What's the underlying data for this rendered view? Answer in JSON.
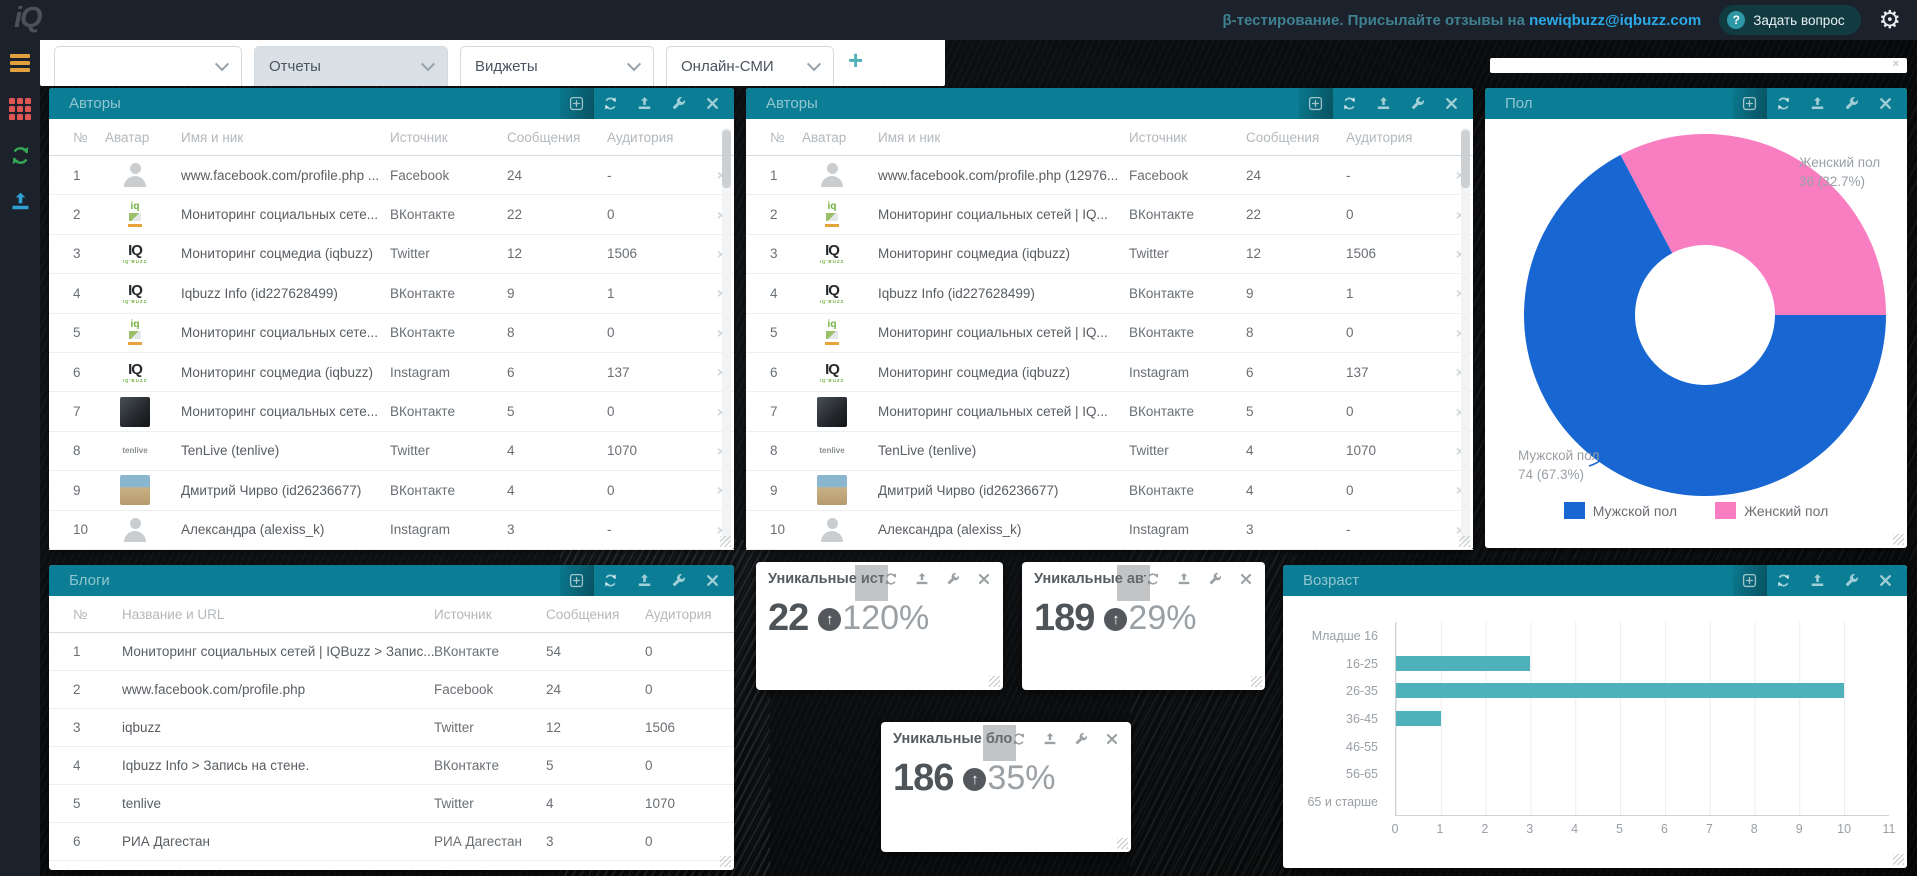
{
  "header": {
    "logo": "iQ",
    "message": "β-тестирование. Присылайте отзывы на",
    "email": "newiqbuzz@iqbuzz.com",
    "ask_button": "Задать вопрос",
    "ask_icon": "?"
  },
  "sidebar": {
    "icons": [
      "menu-icon",
      "apps-grid-icon",
      "refresh-icon",
      "upload-icon"
    ]
  },
  "tabs": {
    "items": [
      {
        "label": "",
        "active": false
      },
      {
        "label": "Отчеты",
        "active": true
      },
      {
        "label": "Виджеты",
        "active": false
      },
      {
        "label": "Онлайн-СМИ",
        "active": false
      }
    ],
    "add_label": "+"
  },
  "panels": {
    "authors1": {
      "title": "Авторы",
      "icons": [
        "add-widget",
        "refresh",
        "export",
        "settings",
        "close"
      ],
      "columns": [
        "№",
        "Аватар",
        "Имя и ник",
        "Источник",
        "Сообщения",
        "Аудитория"
      ],
      "rows": [
        {
          "num": "1",
          "avatar": "person",
          "name": "www.facebook.com/profile.php ...",
          "source": "Facebook",
          "messages": "24",
          "audience": "-"
        },
        {
          "num": "2",
          "avatar": "iq-small",
          "name": "Мониторинг социальных сете...",
          "source": "ВКонтакте",
          "messages": "22",
          "audience": "0"
        },
        {
          "num": "3",
          "avatar": "iq-logo",
          "name": "Мониторинг соцмедиа (iqbuzz)",
          "source": "Twitter",
          "messages": "12",
          "audience": "1506"
        },
        {
          "num": "4",
          "avatar": "iq-logo",
          "name": "Iqbuzz Info (id227628499)",
          "source": "ВКонтакте",
          "messages": "9",
          "audience": "1"
        },
        {
          "num": "5",
          "avatar": "iq-small",
          "name": "Мониторинг социальных сете...",
          "source": "ВКонтакте",
          "messages": "8",
          "audience": "0"
        },
        {
          "num": "6",
          "avatar": "iq-logo",
          "name": "Мониторинг соцмедиа (iqbuzz)",
          "source": "Instagram",
          "messages": "6",
          "audience": "137"
        },
        {
          "num": "7",
          "avatar": "photo-dark",
          "name": "Мониторинг социальных сете...",
          "source": "ВКонтакте",
          "messages": "5",
          "audience": "0"
        },
        {
          "num": "8",
          "avatar": "tenlive",
          "name": "TenLive (tenlive)",
          "source": "Twitter",
          "messages": "4",
          "audience": "1070"
        },
        {
          "num": "9",
          "avatar": "photo-beach",
          "name": "Дмитрий Чирво (id26236677)",
          "source": "ВКонтакте",
          "messages": "4",
          "audience": "0"
        },
        {
          "num": "10",
          "avatar": "person",
          "name": "Александра (alexiss_k)",
          "source": "Instagram",
          "messages": "3",
          "audience": "-"
        }
      ]
    },
    "authors2": {
      "title": "Авторы",
      "icons": [
        "add-widget",
        "refresh",
        "export",
        "settings",
        "close"
      ],
      "columns": [
        "№",
        "Аватар",
        "Имя и ник",
        "Источник",
        "Сообщения",
        "Аудитория"
      ],
      "rows": [
        {
          "num": "1",
          "avatar": "person",
          "name": "www.facebook.com/profile.php (12976...",
          "source": "Facebook",
          "messages": "24",
          "audience": "-"
        },
        {
          "num": "2",
          "avatar": "iq-small",
          "name": "Мониторинг социальных сетей | IQ...",
          "source": "ВКонтакте",
          "messages": "22",
          "audience": "0"
        },
        {
          "num": "3",
          "avatar": "iq-logo",
          "name": "Мониторинг соцмедиа (iqbuzz)",
          "source": "Twitter",
          "messages": "12",
          "audience": "1506"
        },
        {
          "num": "4",
          "avatar": "iq-logo",
          "name": "Iqbuzz Info (id227628499)",
          "source": "ВКонтакте",
          "messages": "9",
          "audience": "1"
        },
        {
          "num": "5",
          "avatar": "iq-small",
          "name": "Мониторинг социальных сетей | IQ...",
          "source": "ВКонтакте",
          "messages": "8",
          "audience": "0"
        },
        {
          "num": "6",
          "avatar": "iq-logo",
          "name": "Мониторинг соцмедиа (iqbuzz)",
          "source": "Instagram",
          "messages": "6",
          "audience": "137"
        },
        {
          "num": "7",
          "avatar": "photo-dark",
          "name": "Мониторинг социальных сетей | IQ...",
          "source": "ВКонтакте",
          "messages": "5",
          "audience": "0"
        },
        {
          "num": "8",
          "avatar": "tenlive",
          "name": "TenLive (tenlive)",
          "source": "Twitter",
          "messages": "4",
          "audience": "1070"
        },
        {
          "num": "9",
          "avatar": "photo-beach",
          "name": "Дмитрий Чирво (id26236677)",
          "source": "ВКонтакте",
          "messages": "4",
          "audience": "0"
        },
        {
          "num": "10",
          "avatar": "person",
          "name": "Александра (alexiss_k)",
          "source": "Instagram",
          "messages": "3",
          "audience": "-"
        }
      ]
    },
    "blogs": {
      "title": "Блоги",
      "icons": [
        "add-widget",
        "refresh",
        "export",
        "settings",
        "close"
      ],
      "columns": [
        "№",
        "Название и URL",
        "Источник",
        "Сообщения",
        "Аудитория"
      ],
      "rows": [
        {
          "num": "1",
          "name": "Мониторинг социальных сетей | IQBuzz > Запис...",
          "source": "ВКонтакте",
          "messages": "54",
          "audience": "0"
        },
        {
          "num": "2",
          "name": "www.facebook.com/profile.php",
          "source": "Facebook",
          "messages": "24",
          "audience": "0"
        },
        {
          "num": "3",
          "name": "iqbuzz",
          "source": "Twitter",
          "messages": "12",
          "audience": "1506"
        },
        {
          "num": "4",
          "name": "Iqbuzz Info > Запись на стене.",
          "source": "ВКонтакте",
          "messages": "5",
          "audience": "0"
        },
        {
          "num": "5",
          "name": "tenlive",
          "source": "Twitter",
          "messages": "4",
          "audience": "1070"
        },
        {
          "num": "6",
          "name": "РИА Дагестан",
          "source": "РИА Дагестан",
          "messages": "3",
          "audience": "0"
        }
      ]
    },
    "gender": {
      "title": "Пол",
      "icons": [
        "add-widget",
        "refresh",
        "export",
        "settings",
        "close"
      ],
      "label_female_name": "Женский пол",
      "label_female_detail": "36 (32.7%)",
      "label_male_name": "Мужской пол",
      "label_male_detail": "74 (67.3%)"
    },
    "age": {
      "title": "Возраст",
      "icons": [
        "add-widget",
        "refresh",
        "export",
        "settings",
        "close"
      ]
    },
    "kpis": [
      {
        "title": "Уникальные источники",
        "value": "22",
        "delta": "120%",
        "arrow": "↑",
        "icons": [
          "refresh",
          "export",
          "settings",
          "close"
        ]
      },
      {
        "title": "Уникальные авторы",
        "value": "189",
        "delta": "29%",
        "arrow": "↑",
        "icons": [
          "refresh",
          "export",
          "settings",
          "close"
        ]
      },
      {
        "title": "Уникальные блоги",
        "value": "186",
        "delta": "35%",
        "arrow": "↑",
        "icons": [
          "refresh",
          "export",
          "settings",
          "close"
        ]
      }
    ]
  },
  "chart_data": [
    {
      "type": "pie",
      "title": "Пол",
      "donut": true,
      "legend_position": "bottom",
      "series": [
        {
          "name": "Мужской пол",
          "value": 74,
          "pct": "67.3%",
          "color": "#1766d1"
        },
        {
          "name": "Женский пол",
          "value": 36,
          "pct": "32.7%",
          "color": "#f97ec1"
        }
      ]
    },
    {
      "type": "bar",
      "title": "Возраст",
      "orientation": "horizontal",
      "categories": [
        "Младше 16",
        "16-25",
        "26-35",
        "36-45",
        "46-55",
        "56-65",
        "65 и старше"
      ],
      "values": [
        0,
        3,
        10,
        1,
        0,
        0,
        0
      ],
      "xlabel": "",
      "ylabel": "",
      "xlim": [
        0,
        11
      ],
      "x_ticks": [
        0,
        1,
        2,
        3,
        4,
        5,
        6,
        7,
        8,
        9,
        10,
        11
      ],
      "grid": true,
      "bar_color": "#4fb2bb"
    }
  ]
}
